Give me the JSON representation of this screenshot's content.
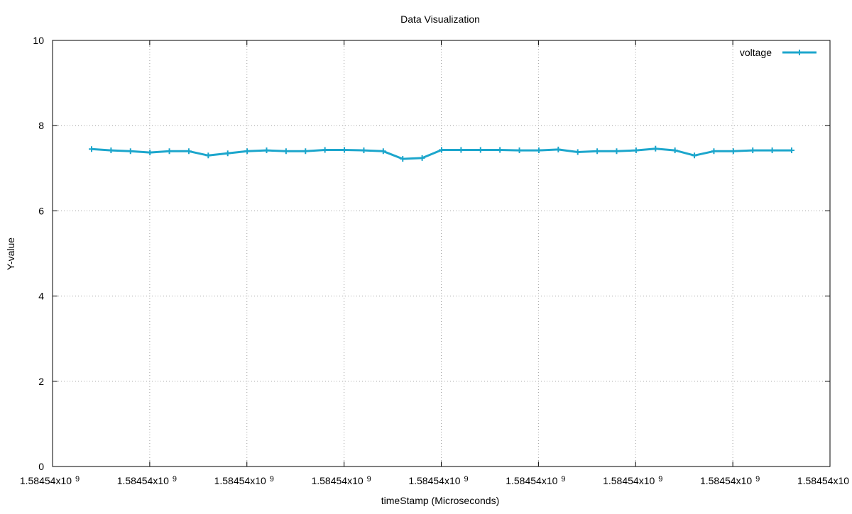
{
  "chart_data": {
    "type": "line",
    "title": "Data Visualization",
    "xlabel": "timeStamp (Microseconds)",
    "ylabel": "Y-value",
    "ylim": [
      0,
      10
    ],
    "yticks": [
      0,
      2,
      4,
      6,
      8,
      10
    ],
    "xtick_labels": [
      "1.58454x10",
      "1.58454x10",
      "1.58454x10",
      "1.58454x10",
      "1.58454x10",
      "1.58454x10",
      "1.58454x10",
      "1.58454x10",
      "1.58454x10"
    ],
    "xtick_exponent": "9",
    "grid": true,
    "legend": {
      "position": "top-right",
      "entries": [
        "voltage"
      ]
    },
    "series": [
      {
        "name": "voltage",
        "color": "#1ca6cc",
        "marker": "plus",
        "values": [
          7.45,
          7.42,
          7.4,
          7.37,
          7.4,
          7.4,
          7.3,
          7.35,
          7.4,
          7.42,
          7.4,
          7.4,
          7.43,
          7.43,
          7.42,
          7.4,
          7.22,
          7.24,
          7.43,
          7.43,
          7.43,
          7.43,
          7.42,
          7.42,
          7.44,
          7.38,
          7.4,
          7.4,
          7.42,
          7.46,
          7.42,
          7.3,
          7.4,
          7.4,
          7.42,
          7.42,
          7.42
        ]
      }
    ]
  }
}
